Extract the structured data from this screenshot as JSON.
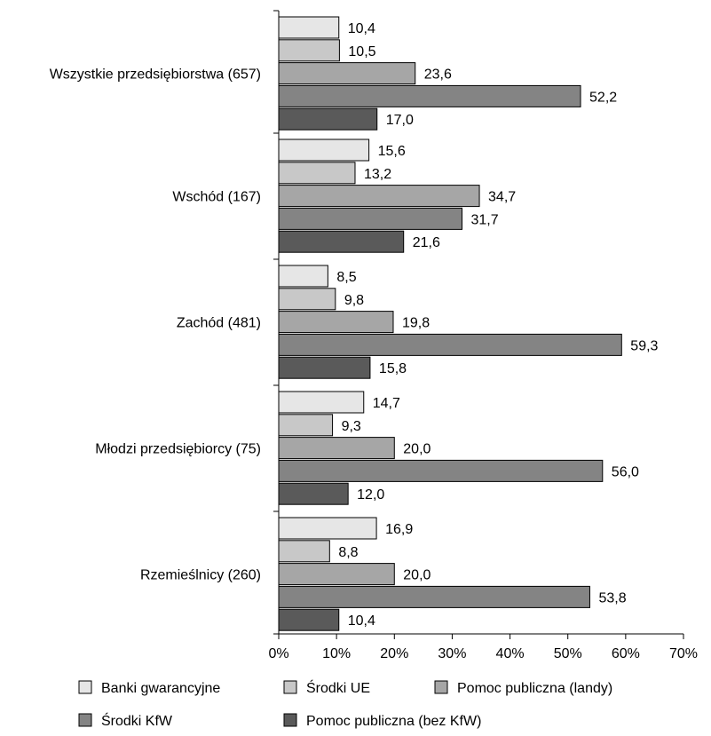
{
  "chart_data": {
    "type": "bar",
    "orientation": "horizontal",
    "categories": [
      "Wszystkie przedsiębiorstwa (657)",
      "Wschód (167)",
      "Zachód (481)",
      "Młodzi przedsiębiorcy (75)",
      "Rzemieślnicy (260)"
    ],
    "series": [
      {
        "name": "Banki gwarancyjne",
        "color": "#e6e6e6",
        "values": [
          10.4,
          15.6,
          8.5,
          14.7,
          16.9
        ],
        "labels": [
          "10,4",
          "15,6",
          "8,5",
          "14,7",
          "16,9"
        ]
      },
      {
        "name": "Środki UE",
        "color": "#c8c8c8",
        "values": [
          10.5,
          13.2,
          9.8,
          9.3,
          8.8
        ],
        "labels": [
          "10,5",
          "13,2",
          "9,8",
          "9,3",
          "8,8"
        ]
      },
      {
        "name": "Pomoc publiczna (landy)",
        "color": "#a6a6a6",
        "values": [
          23.6,
          34.7,
          19.8,
          20.0,
          20.0
        ],
        "labels": [
          "23,6",
          "34,7",
          "19,8",
          "20,0",
          "20,0"
        ]
      },
      {
        "name": "Środki KfW",
        "color": "#848484",
        "values": [
          52.2,
          31.7,
          59.3,
          56.0,
          53.8
        ],
        "labels": [
          "52,2",
          "31,7",
          "59,3",
          "56,0",
          "53,8"
        ]
      },
      {
        "name": "Pomoc publiczna (bez KfW)",
        "color": "#5a5a5a",
        "values": [
          17.0,
          21.6,
          15.8,
          12.0,
          10.4
        ],
        "labels": [
          "17,0",
          "21,6",
          "15,8",
          "12,0",
          "10,4"
        ]
      }
    ],
    "xlim": [
      0,
      70
    ],
    "xticks": [
      "0%",
      "10%",
      "20%",
      "30%",
      "40%",
      "50%",
      "60%",
      "70%"
    ],
    "title": "",
    "xlabel": "",
    "ylabel": "",
    "grid": false,
    "legend_position": "bottom"
  }
}
